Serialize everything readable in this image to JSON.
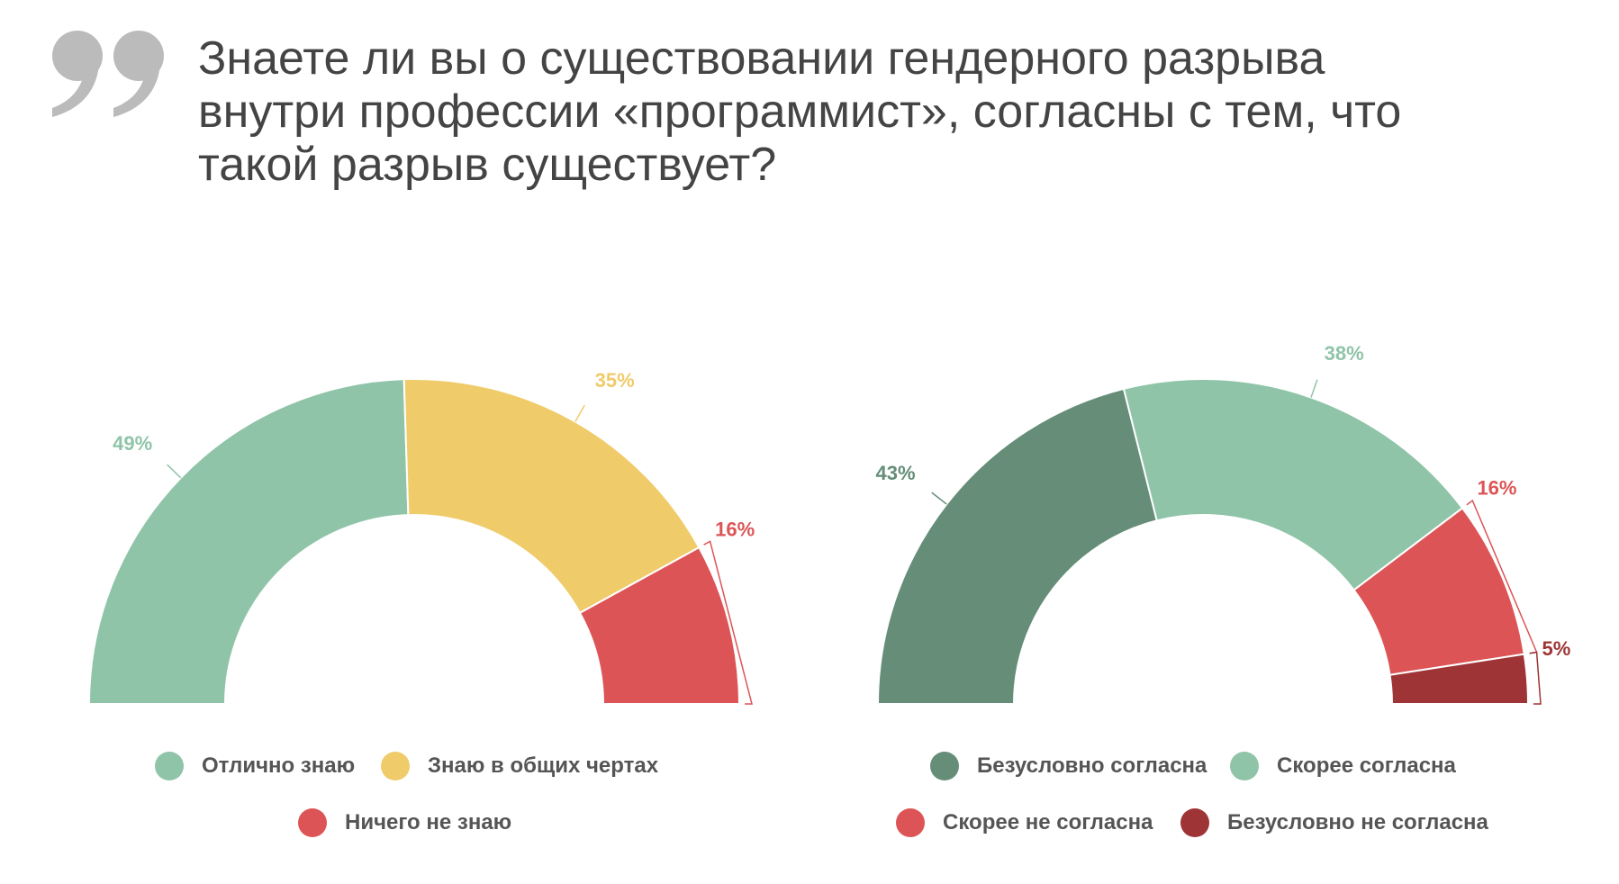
{
  "title": {
    "lines": [
      "Знаете ли вы о существовании гендерного разрыва",
      "внутри профессии «программист», согласны с тем, что",
      "такой разрыв существует?"
    ]
  },
  "quote_icon": "quotation-mark-icon",
  "chart_data": [
    {
      "type": "pie",
      "variant": "semi-donut",
      "title": "",
      "categories": [
        "Отлично знаю",
        "Знаю в общих чертах",
        "Ничего не знаю"
      ],
      "values": [
        49,
        35,
        16
      ],
      "labels": [
        "49%",
        "35%",
        "16%"
      ],
      "colors": [
        "#8fc4a8",
        "#efcb6a",
        "#dd5456"
      ],
      "legend_placement": "bottom",
      "legend": [
        {
          "label": "Отлично знаю",
          "color": "#8fc4a8"
        },
        {
          "label": "Знаю в общих чертах",
          "color": "#efcb6a"
        },
        {
          "label": "Ничего не знаю",
          "color": "#dd5456"
        }
      ]
    },
    {
      "type": "pie",
      "variant": "semi-donut",
      "title": "",
      "categories": [
        "Безусловно согласна",
        "Скорее согласна",
        "Скорее не согласна",
        "Безусловно не согласна"
      ],
      "values": [
        43,
        38,
        16,
        5
      ],
      "labels": [
        "43%",
        "38%",
        "16%",
        "5%"
      ],
      "colors": [
        "#658d78",
        "#8fc4a8",
        "#dd5456",
        "#9e3436"
      ],
      "legend_placement": "bottom",
      "legend": [
        {
          "label": "Безусловно согласна",
          "color": "#658d78"
        },
        {
          "label": "Скорее согласна",
          "color": "#8fc4a8"
        },
        {
          "label": "Скорее не согласна",
          "color": "#dd5456"
        },
        {
          "label": "Безусловно не согласна",
          "color": "#9e3436"
        }
      ]
    }
  ]
}
